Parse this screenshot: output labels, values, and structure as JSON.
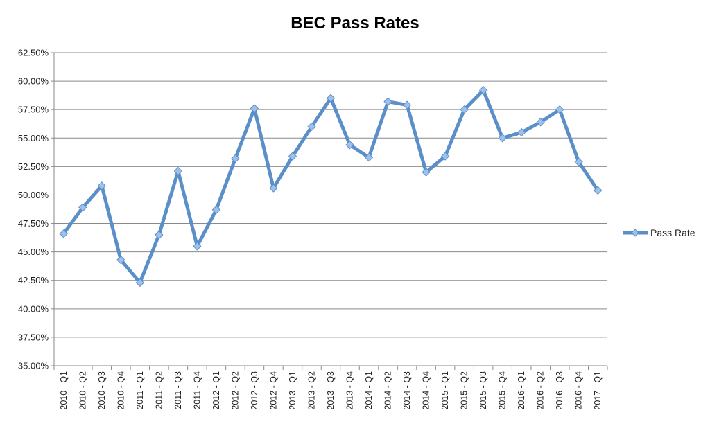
{
  "chart_data": {
    "type": "line",
    "title": "BEC Pass Rates",
    "xlabel": "",
    "ylabel": "",
    "ylim": [
      35.0,
      62.5
    ],
    "y_ticks": [
      "35.00%",
      "37.50%",
      "40.00%",
      "42.50%",
      "45.00%",
      "47.50%",
      "50.00%",
      "52.50%",
      "55.00%",
      "57.50%",
      "60.00%",
      "62.50%"
    ],
    "grid": "horizontal",
    "legend_position": "right",
    "categories": [
      "2010 - Q1",
      "2010 - Q2",
      "2010 - Q3",
      "2010 - Q4",
      "2011 - Q1",
      "2011 - Q2",
      "2011 - Q3",
      "2011 - Q4",
      "2012 - Q1",
      "2012 - Q2",
      "2012 - Q3",
      "2012 - Q4",
      "2013 - Q1",
      "2013 - Q2",
      "2013 - Q3",
      "2013 - Q4",
      "2014 - Q1",
      "2014 - Q2",
      "2014 - Q3",
      "2014 - Q4",
      "2015 - Q1",
      "2015 - Q2",
      "2015 - Q3",
      "2015 - Q4",
      "2016 - Q1",
      "2016 - Q2",
      "2016 - Q3",
      "2016 - Q4",
      "2017 - Q1"
    ],
    "series": [
      {
        "name": "Pass Rate",
        "color": "#5b8fc9",
        "marker_color": "#9cc2ec",
        "values": [
          46.6,
          48.9,
          50.8,
          44.3,
          42.3,
          46.5,
          52.1,
          45.5,
          48.7,
          53.2,
          57.6,
          50.6,
          53.4,
          56.0,
          58.5,
          54.4,
          53.3,
          58.2,
          57.9,
          52.0,
          53.4,
          57.5,
          59.2,
          55.0,
          55.5,
          56.4,
          57.5,
          52.9,
          50.4
        ]
      }
    ]
  }
}
